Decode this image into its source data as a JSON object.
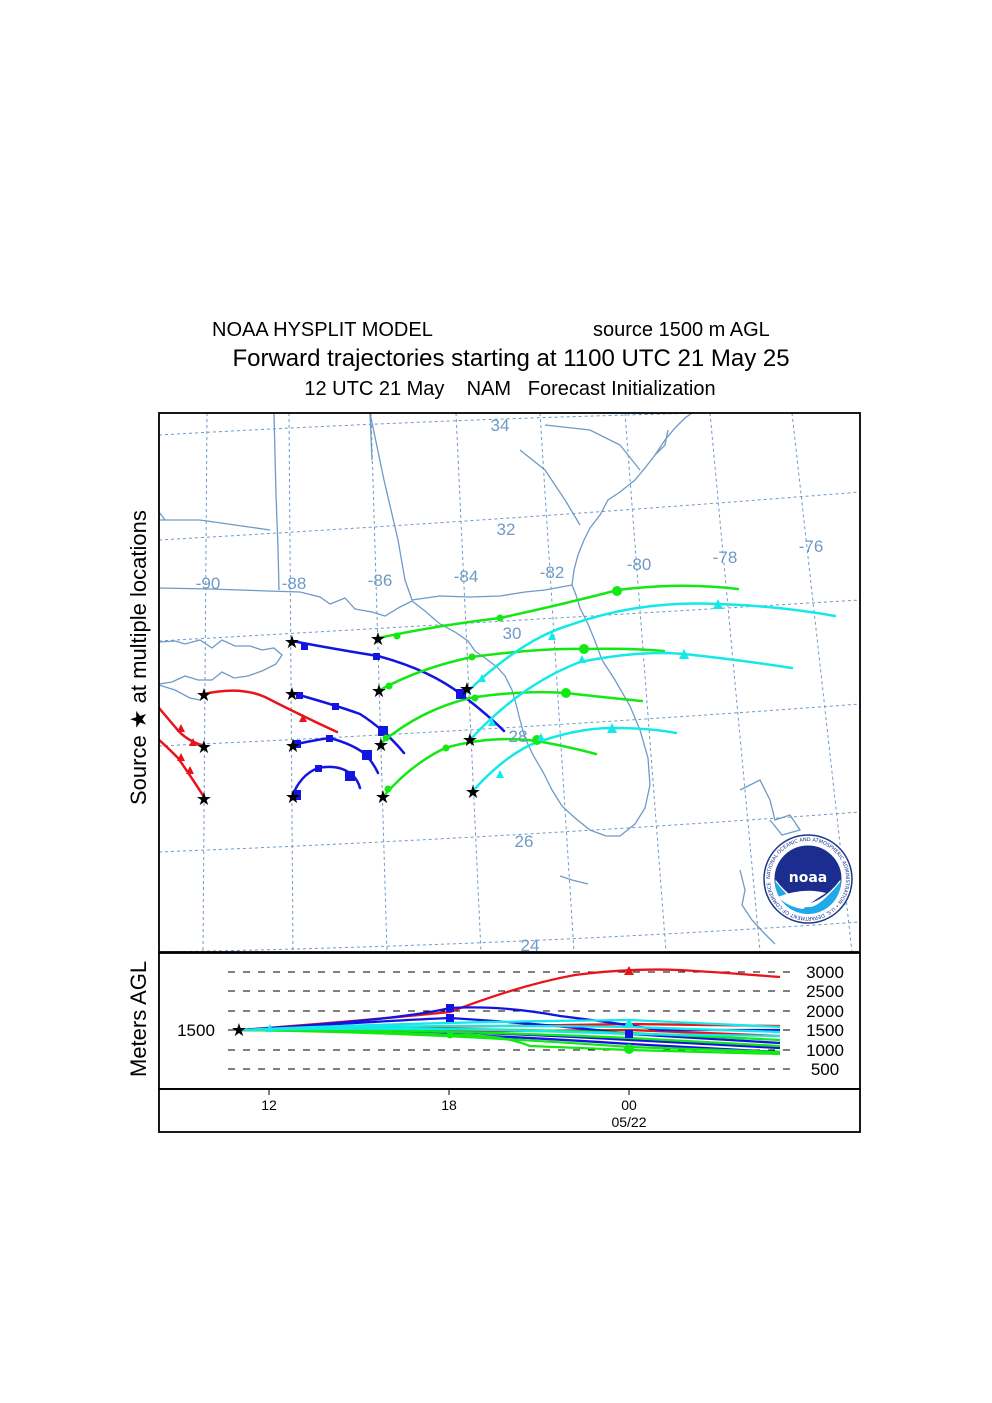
{
  "title": {
    "line1_left": "NOAA HYSPLIT MODEL",
    "line1_right": "source 1500 m AGL",
    "line2": "Forward trajectories starting at 1100 UTC 21 May 25",
    "line3": "12 UTC 21 May    NAM   Forecast Initialization"
  },
  "side_labels": {
    "source": "Source ★  at multiple locations",
    "meters": "Meters AGL"
  },
  "map": {
    "lat_labels": [
      "34",
      "32",
      "30",
      "28",
      "26",
      "24"
    ],
    "lon_labels": [
      "-90",
      "-88",
      "-86",
      "-84",
      "-82",
      "-80",
      "-78",
      "-76"
    ],
    "grid_color": "#6e9ac7",
    "coast_color": "#6e9ac7"
  },
  "logo": {
    "text": "noaa",
    "ring_text": "NATIONAL OCEANIC AND ATMOSPHERIC ADMINISTRATION • U.S. DEPARTMENT OF COMMERCE"
  },
  "altitude_panel": {
    "levels": [
      "3000",
      "2500",
      "2000",
      "1500",
      "1000",
      "500"
    ],
    "start_label": "1500",
    "time_ticks": [
      "12",
      "18",
      "00"
    ],
    "date_label": "05/22"
  },
  "chart_data": {
    "type": "line",
    "source_height_m_agl": 1500,
    "series_colors": {
      "red": "#e8141b",
      "blue": "#1414e0",
      "green": "#14e814",
      "cyan": "#14e8e8"
    },
    "time_axis": {
      "ticks": [
        "12",
        "18",
        "00"
      ],
      "date": "05/22"
    },
    "altitude_axis": {
      "levels": [
        3000,
        2500,
        2000,
        1500,
        1000,
        500
      ],
      "unit": "Meters AGL"
    }
  }
}
